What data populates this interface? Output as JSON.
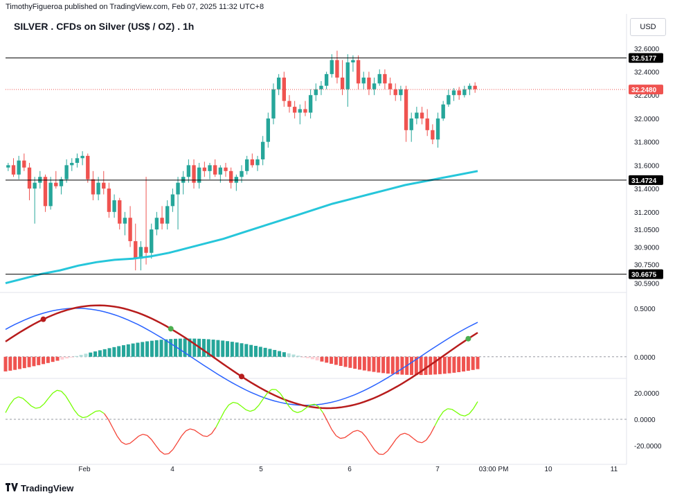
{
  "header": {
    "publisher": "TimothyFigueroa published on TradingView.com, Feb 07, 2025 11:32 UTC+8"
  },
  "title": "SILVER . CFDs on Silver (US$ / OZ) . 1h",
  "currency": "USD",
  "footer": {
    "brand": "TradingView"
  },
  "colors": {
    "up": "#26a69a",
    "down": "#ef5350",
    "ma": "#26c6da",
    "macd_fast_green": "#4caf50",
    "macd_fast_red": "#b71c1c",
    "macd_slow": "#2962ff",
    "osc_up": "#76ff03",
    "osc_down": "#f44336"
  },
  "chart_data": [
    {
      "type": "candlestick",
      "title": "SILVER . CFDs on Silver (US$ / OZ) . 1h",
      "y_ticks": [
        "32.6000",
        "32.4000",
        "32.2000",
        "32.0000",
        "31.8000",
        "31.6000",
        "31.4000",
        "31.2000",
        "31.0500",
        "30.9000",
        "30.7500",
        "30.5900"
      ],
      "x_ticks": [
        "Feb",
        "4",
        "5",
        "6",
        "7",
        "03:00 PM",
        "10",
        "11"
      ],
      "horizontal_levels": [
        "32.5177",
        "31.4724",
        "30.6675"
      ],
      "last_price": "32.2480",
      "ylim": [
        30.57,
        32.67
      ],
      "ohlc": [
        [
          31.58,
          31.62,
          31.55,
          31.6
        ],
        [
          31.6,
          31.66,
          31.5,
          31.52
        ],
        [
          31.52,
          31.68,
          31.48,
          31.64
        ],
        [
          31.64,
          31.7,
          31.55,
          31.58
        ],
        [
          31.58,
          31.62,
          31.3,
          31.4
        ],
        [
          31.4,
          31.5,
          31.1,
          31.45
        ],
        [
          31.45,
          31.55,
          31.4,
          31.5
        ],
        [
          31.5,
          31.52,
          31.2,
          31.25
        ],
        [
          31.25,
          31.5,
          31.22,
          31.45
        ],
        [
          31.45,
          31.55,
          31.4,
          31.42
        ],
        [
          31.42,
          31.5,
          31.35,
          31.48
        ],
        [
          31.48,
          31.65,
          31.45,
          31.6
        ],
        [
          31.6,
          31.66,
          31.55,
          31.62
        ],
        [
          31.62,
          31.7,
          31.58,
          31.66
        ],
        [
          31.66,
          31.72,
          31.6,
          31.68
        ],
        [
          31.68,
          31.7,
          31.45,
          31.48
        ],
        [
          31.48,
          31.55,
          31.3,
          31.35
        ],
        [
          31.35,
          31.5,
          31.3,
          31.45
        ],
        [
          31.45,
          31.55,
          31.35,
          31.4
        ],
        [
          31.4,
          31.45,
          31.15,
          31.2
        ],
        [
          31.2,
          31.35,
          31.15,
          31.3
        ],
        [
          31.3,
          31.32,
          31.05,
          31.1
        ],
        [
          31.1,
          31.2,
          31.0,
          31.15
        ],
        [
          31.15,
          31.25,
          30.9,
          30.95
        ],
        [
          30.95,
          31.1,
          30.7,
          30.8
        ],
        [
          30.8,
          30.95,
          30.7,
          30.9
        ],
        [
          30.9,
          31.5,
          30.75,
          30.85
        ],
        [
          30.85,
          31.1,
          30.8,
          31.05
        ],
        [
          31.05,
          31.2,
          31.0,
          31.15
        ],
        [
          31.15,
          31.25,
          31.05,
          31.1
        ],
        [
          31.1,
          31.3,
          31.05,
          31.25
        ],
        [
          31.25,
          31.4,
          31.2,
          31.35
        ],
        [
          31.35,
          31.5,
          31.05,
          31.45
        ],
        [
          31.45,
          31.55,
          31.35,
          31.5
        ],
        [
          31.5,
          31.65,
          31.45,
          31.6
        ],
        [
          31.6,
          31.65,
          31.4,
          31.45
        ],
        [
          31.45,
          31.62,
          31.4,
          31.58
        ],
        [
          31.58,
          31.63,
          31.5,
          31.55
        ],
        [
          31.55,
          31.62,
          31.48,
          31.6
        ],
        [
          31.6,
          31.65,
          31.5,
          31.52
        ],
        [
          31.52,
          31.6,
          31.45,
          31.58
        ],
        [
          31.58,
          31.62,
          31.5,
          31.55
        ],
        [
          31.55,
          31.58,
          31.4,
          31.45
        ],
        [
          31.45,
          31.52,
          31.38,
          31.5
        ],
        [
          31.5,
          31.6,
          31.45,
          31.55
        ],
        [
          31.55,
          31.68,
          31.52,
          31.65
        ],
        [
          31.65,
          31.7,
          31.58,
          31.6
        ],
        [
          31.6,
          31.68,
          31.55,
          31.65
        ],
        [
          31.65,
          31.85,
          31.6,
          31.8
        ],
        [
          31.8,
          32.05,
          31.75,
          32.0
        ],
        [
          32.0,
          32.3,
          31.95,
          32.25
        ],
        [
          32.25,
          32.38,
          32.2,
          32.35
        ],
        [
          32.35,
          32.4,
          32.1,
          32.15
        ],
        [
          32.15,
          32.2,
          32.05,
          32.1
        ],
        [
          32.1,
          32.15,
          32.0,
          32.05
        ],
        [
          32.05,
          32.12,
          31.95,
          32.08
        ],
        [
          32.08,
          32.15,
          32.02,
          32.05
        ],
        [
          32.05,
          32.25,
          32.0,
          32.2
        ],
        [
          32.2,
          32.3,
          32.15,
          32.25
        ],
        [
          32.25,
          32.32,
          32.2,
          32.28
        ],
        [
          32.28,
          32.4,
          32.25,
          32.38
        ],
        [
          32.38,
          32.55,
          32.35,
          32.5
        ],
        [
          32.5,
          32.58,
          32.3,
          32.35
        ],
        [
          32.35,
          32.5,
          32.2,
          32.25
        ],
        [
          32.25,
          32.55,
          32.1,
          32.48
        ],
        [
          32.48,
          32.54,
          32.4,
          32.5
        ],
        [
          32.5,
          32.54,
          32.25,
          32.3
        ],
        [
          32.3,
          32.4,
          32.25,
          32.35
        ],
        [
          32.35,
          32.4,
          32.2,
          32.25
        ],
        [
          32.25,
          32.35,
          32.2,
          32.3
        ],
        [
          32.3,
          32.42,
          32.28,
          32.38
        ],
        [
          32.38,
          32.42,
          32.25,
          32.3
        ],
        [
          32.3,
          32.35,
          32.2,
          32.25
        ],
        [
          32.25,
          32.3,
          32.15,
          32.2
        ],
        [
          32.2,
          32.28,
          32.15,
          32.25
        ],
        [
          32.25,
          32.28,
          31.8,
          31.9
        ],
        [
          31.9,
          32.05,
          31.8,
          32.0
        ],
        [
          32.0,
          32.1,
          31.95,
          32.05
        ],
        [
          32.05,
          32.1,
          31.95,
          32.0
        ],
        [
          32.0,
          32.08,
          31.85,
          31.9
        ],
        [
          31.9,
          31.95,
          31.78,
          31.82
        ],
        [
          31.82,
          32.05,
          31.75,
          32.0
        ],
        [
          32.0,
          32.15,
          31.98,
          32.12
        ],
        [
          32.12,
          32.25,
          32.1,
          32.2
        ],
        [
          32.2,
          32.26,
          32.15,
          32.24
        ],
        [
          32.24,
          32.27,
          32.16,
          32.2
        ],
        [
          32.2,
          32.28,
          32.18,
          32.25
        ],
        [
          32.25,
          32.3,
          32.2,
          32.28
        ],
        [
          32.28,
          32.31,
          32.22,
          32.25
        ]
      ],
      "ma_series": {
        "name": "",
        "values": [
          30.59,
          30.63,
          30.67,
          30.7,
          30.74,
          30.77,
          30.79,
          30.8,
          30.82,
          30.85,
          30.89,
          30.93,
          30.97,
          31.02,
          31.07,
          31.12,
          31.17,
          31.22,
          31.27,
          31.31,
          31.35,
          31.39,
          31.43,
          31.46,
          31.49,
          31.52,
          31.55
        ]
      }
    },
    {
      "type": "line",
      "title": "",
      "y_ticks": [
        "0.5000",
        "0.0000"
      ],
      "ylim": [
        -0.18,
        0.62
      ]
    },
    {
      "type": "line",
      "title": "",
      "y_ticks": [
        "20.0000",
        "0.0000",
        "-20.0000"
      ],
      "ylim": [
        -30,
        30
      ]
    }
  ]
}
